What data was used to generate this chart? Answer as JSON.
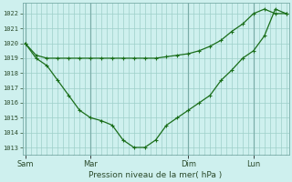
{
  "background_color": "#cef0ee",
  "grid_color": "#9ecfca",
  "line_color": "#1a6e1a",
  "xlabel": "Pression niveau de la mer( hPa )",
  "ylim": [
    1012.5,
    1022.7
  ],
  "yticks": [
    1013,
    1014,
    1015,
    1016,
    1017,
    1018,
    1019,
    1020,
    1021,
    1022
  ],
  "xtick_labels": [
    "Sam",
    "Mar",
    "Dim",
    "Lun"
  ],
  "xtick_positions": [
    0,
    12,
    30,
    42
  ],
  "total_points": 48,
  "series1_x": [
    0,
    2,
    4,
    6,
    8,
    10,
    12,
    14,
    16,
    18,
    20,
    22,
    24,
    26,
    28,
    30,
    32,
    34,
    36,
    38,
    40,
    42,
    44,
    46,
    48
  ],
  "series1_y": [
    1020.0,
    1019.2,
    1019.0,
    1019.0,
    1019.0,
    1019.0,
    1019.0,
    1019.0,
    1019.0,
    1019.0,
    1019.0,
    1019.0,
    1019.0,
    1019.1,
    1019.2,
    1019.3,
    1019.5,
    1019.8,
    1020.2,
    1020.8,
    1021.3,
    1022.0,
    1022.3,
    1022.0,
    1022.0
  ],
  "series2_x": [
    0,
    2,
    4,
    6,
    8,
    10,
    12,
    14,
    16,
    18,
    20,
    22,
    24,
    26,
    28,
    30,
    32,
    34,
    36,
    38,
    40,
    42,
    44,
    46,
    48
  ],
  "series2_y": [
    1020.0,
    1019.0,
    1018.5,
    1017.5,
    1016.5,
    1015.5,
    1015.0,
    1014.8,
    1014.5,
    1013.5,
    1013.0,
    1013.0,
    1013.5,
    1014.5,
    1015.0,
    1015.5,
    1016.0,
    1016.5,
    1017.5,
    1018.2,
    1019.0,
    1019.5,
    1020.5,
    1022.3,
    1022.0
  ],
  "vline_positions": [
    0,
    12,
    30,
    42
  ],
  "vline_color": "#7aada8"
}
